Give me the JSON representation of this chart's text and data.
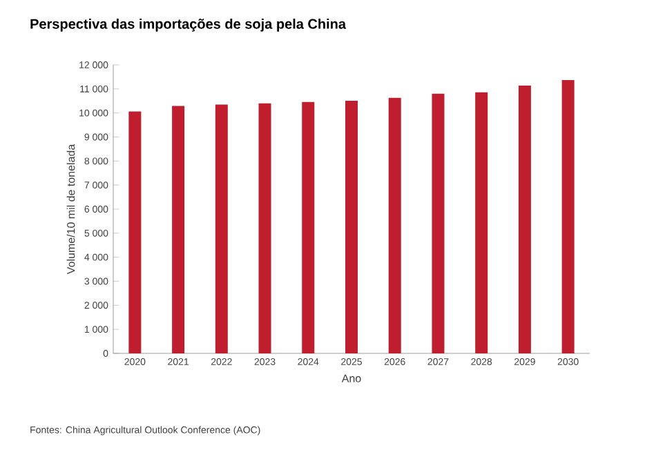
{
  "chart_data": {
    "type": "bar",
    "title": "Perspectiva das importações de soja pela China",
    "xlabel": "Ano",
    "ylabel": "Volume/10 mil de tonelada",
    "categories": [
      "2020",
      "2021",
      "2022",
      "2023",
      "2024",
      "2025",
      "2026",
      "2027",
      "2028",
      "2029",
      "2030"
    ],
    "values": [
      10060,
      10290,
      10350,
      10400,
      10460,
      10510,
      10630,
      10800,
      10860,
      11140,
      11370
    ],
    "color": "#be1e2d",
    "ylim": [
      0,
      12000
    ],
    "yticks": [
      0,
      {
        "value": 1000,
        "label": "1 000"
      },
      {
        "value": 2000,
        "label": "2 000"
      },
      {
        "value": 3000,
        "label": "3 000"
      },
      {
        "value": 4000,
        "label": "4 000"
      },
      {
        "value": 5000,
        "label": "5 000"
      },
      {
        "value": 6000,
        "label": "6 000"
      },
      {
        "value": 7000,
        "label": "7 000"
      },
      {
        "value": 8000,
        "label": "8 000"
      },
      {
        "value": 9000,
        "label": "9 000"
      },
      {
        "value": 10000,
        "label": "10 000"
      },
      {
        "value": 11000,
        "label": "11 000"
      },
      {
        "value": 12000,
        "label": "12 000"
      }
    ],
    "grid": false,
    "annotations": [
      "Fontes: China Agricultural Outlook Conference (AOC)"
    ]
  }
}
